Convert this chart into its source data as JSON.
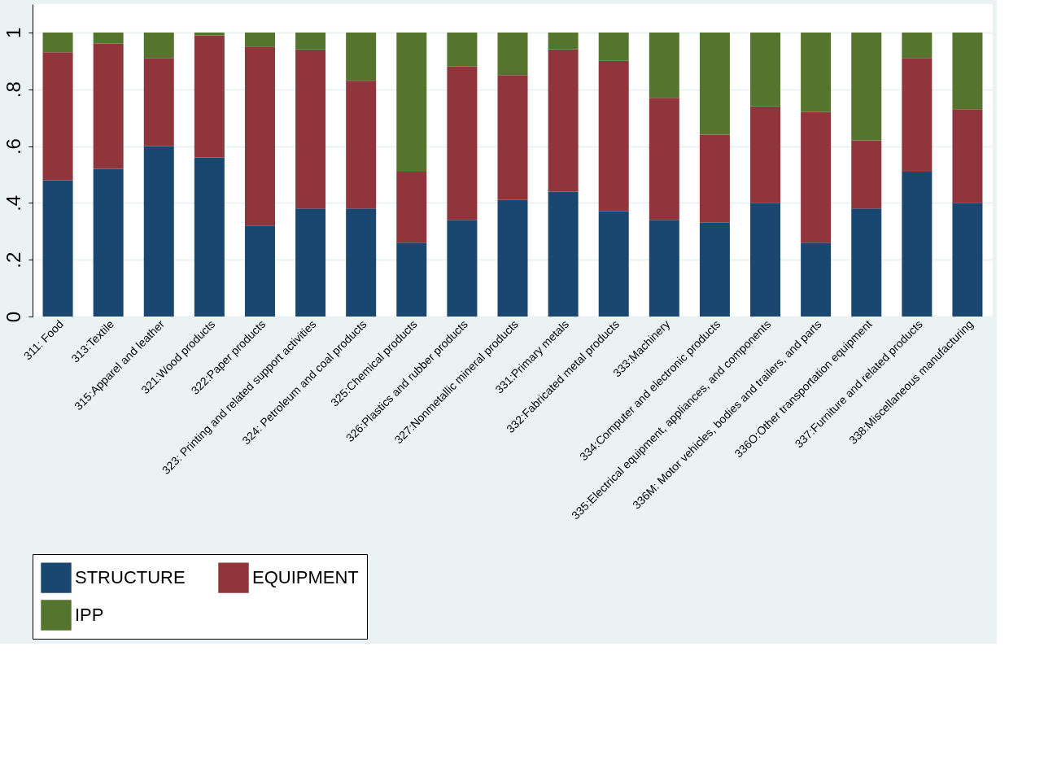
{
  "chart_data": {
    "type": "bar",
    "stacked": true,
    "categories": [
      "311: Food",
      "313:Textile",
      "315:Apparel and leather",
      "321:Wood products",
      "322:Paper products",
      "323: Printing and related support activities",
      "324: Petroleum and coal products",
      "325:Chemical products",
      "326:Plastics and rubber products",
      "327:Nonmetallic mineral products",
      "331:Primary metals",
      "332:Fabricated metal products",
      "333:Machinery",
      "334:Computer and electronic products",
      "335:Electrical equipment, appliances, and components",
      "336M: Motor vehicles, bodies and trailers, and parts",
      "336O:Other transportation equipment",
      "337:Furniture and related products",
      "338:Miscellaneous manufacturing"
    ],
    "series": [
      {
        "name": "STRUCTURE",
        "color": "#1a476f",
        "values": [
          0.48,
          0.52,
          0.6,
          0.56,
          0.32,
          0.38,
          0.38,
          0.26,
          0.34,
          0.41,
          0.44,
          0.37,
          0.34,
          0.33,
          0.4,
          0.26,
          0.38,
          0.51,
          0.4
        ]
      },
      {
        "name": "EQUIPMENT",
        "color": "#90353b",
        "values": [
          0.45,
          0.44,
          0.31,
          0.43,
          0.63,
          0.56,
          0.45,
          0.25,
          0.54,
          0.44,
          0.5,
          0.53,
          0.43,
          0.31,
          0.34,
          0.46,
          0.24,
          0.4,
          0.33
        ]
      },
      {
        "name": "IPP",
        "color": "#55752f",
        "values": [
          0.07,
          0.04,
          0.09,
          0.01,
          0.05,
          0.06,
          0.17,
          0.49,
          0.12,
          0.15,
          0.06,
          0.1,
          0.23,
          0.36,
          0.26,
          0.28,
          0.38,
          0.09,
          0.27
        ]
      }
    ],
    "ylim": [
      0,
      1.1
    ],
    "yticks": [
      0,
      {
        "value": 0.2,
        "label": ".2"
      },
      {
        "value": 0.4,
        "label": ".4"
      },
      {
        "value": 0.6,
        "label": ".6"
      },
      {
        "value": 0.8,
        "label": ".8"
      },
      1
    ],
    "grid": "y",
    "legend": "bottom"
  }
}
